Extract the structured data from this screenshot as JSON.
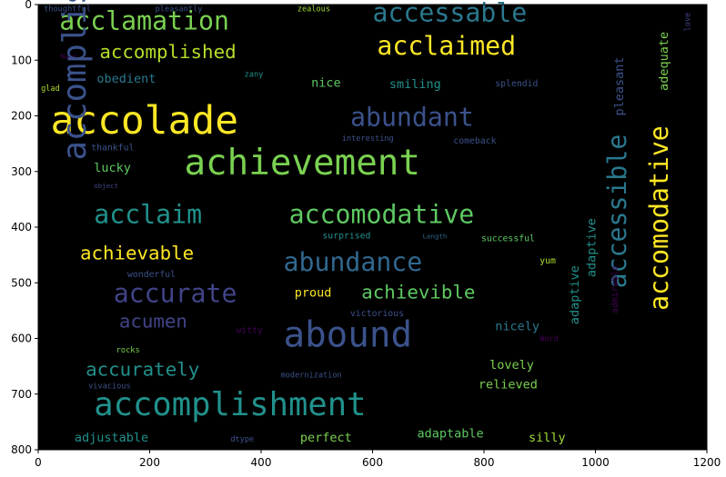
{
  "chart_data": {
    "type": "wordcloud",
    "title": "",
    "xlabel": "",
    "ylabel": "",
    "xlim": [
      0,
      1200
    ],
    "ylim": [
      800,
      0
    ],
    "x_ticks": [
      0,
      200,
      400,
      600,
      800,
      1000,
      1200
    ],
    "y_ticks": [
      0,
      100,
      200,
      300,
      400,
      500,
      600,
      700,
      800
    ],
    "background": "#000000",
    "grid": false,
    "words": [
      {
        "text": "thoughtful",
        "x": 10,
        "y": 12,
        "size": 14,
        "color": "#3b528b",
        "rotate": 0
      },
      {
        "text": "pleasantly",
        "x": 210,
        "y": 12,
        "size": 14,
        "color": "#3b528b",
        "rotate": 0
      },
      {
        "text": "zealous",
        "x": 465,
        "y": 12,
        "size": 14,
        "color": "#a0da39",
        "rotate": 0
      },
      {
        "text": "acclamation",
        "x": 38,
        "y": 45,
        "size": 46,
        "color": "#7ad151",
        "rotate": 0
      },
      {
        "text": "accessable",
        "x": 600,
        "y": 30,
        "size": 46,
        "color": "#2a788e",
        "rotate": 0
      },
      {
        "text": "love",
        "x": 1170,
        "y": 48,
        "size": 14,
        "color": "#414487",
        "rotate": 90
      },
      {
        "text": "adequate",
        "x": 1130,
        "y": 155,
        "size": 22,
        "color": "#7ad151",
        "rotate": 270
      },
      {
        "text": "Name",
        "x": 40,
        "y": 97,
        "size": 12,
        "color": "#440154",
        "rotate": 0
      },
      {
        "text": "accomplished",
        "x": 110,
        "y": 96,
        "size": 34,
        "color": "#b5de2b",
        "rotate": 0
      },
      {
        "text": "acclaimed",
        "x": 608,
        "y": 90,
        "size": 46,
        "color": "#fde725",
        "rotate": 0
      },
      {
        "text": "zany",
        "x": 370,
        "y": 130,
        "size": 14,
        "color": "#21918c",
        "rotate": 0
      },
      {
        "text": "obedient",
        "x": 105,
        "y": 140,
        "size": 22,
        "color": "#2a788e",
        "rotate": 0
      },
      {
        "text": "nice",
        "x": 490,
        "y": 148,
        "size": 22,
        "color": "#5ec962",
        "rotate": 0
      },
      {
        "text": "smiling",
        "x": 630,
        "y": 150,
        "size": 22,
        "color": "#21918c",
        "rotate": 0
      },
      {
        "text": "splendid",
        "x": 820,
        "y": 147,
        "size": 16,
        "color": "#3b528b",
        "rotate": 0
      },
      {
        "text": "glad",
        "x": 5,
        "y": 155,
        "size": 14,
        "color": "#addc30",
        "rotate": 0
      },
      {
        "text": "pleasant",
        "x": 1050,
        "y": 200,
        "size": 22,
        "color": "#3b528b",
        "rotate": 270
      },
      {
        "text": "accomodative",
        "x": 1130,
        "y": 550,
        "size": 46,
        "color": "#fde725",
        "rotate": 270
      },
      {
        "text": "accolade",
        "x": 22,
        "y": 232,
        "size": 70,
        "color": "#fde725",
        "rotate": 0
      },
      {
        "text": "abundant",
        "x": 560,
        "y": 218,
        "size": 46,
        "color": "#3b528b",
        "rotate": 0
      },
      {
        "text": "accessible",
        "x": 1055,
        "y": 510,
        "size": 46,
        "color": "#2a788e",
        "rotate": 270
      },
      {
        "text": "interesting",
        "x": 545,
        "y": 245,
        "size": 14,
        "color": "#3b528b",
        "rotate": 0
      },
      {
        "text": "comeback",
        "x": 745,
        "y": 250,
        "size": 16,
        "color": "#3b528b",
        "rotate": 0
      },
      {
        "text": "thankful",
        "x": 95,
        "y": 262,
        "size": 16,
        "color": "#3b528b",
        "rotate": 0
      },
      {
        "text": "achievement",
        "x": 262,
        "y": 305,
        "size": 64,
        "color": "#7ad151",
        "rotate": 0
      },
      {
        "text": "accomplish",
        "x": 85,
        "y": 280,
        "size": 58,
        "color": "#3b528b",
        "rotate": 270
      },
      {
        "text": "lucky",
        "x": 100,
        "y": 300,
        "size": 22,
        "color": "#5ec962",
        "rotate": 0
      },
      {
        "text": "object",
        "x": 100,
        "y": 330,
        "size": 12,
        "color": "#414487",
        "rotate": 0
      },
      {
        "text": "acclaim",
        "x": 100,
        "y": 393,
        "size": 46,
        "color": "#21918c",
        "rotate": 0
      },
      {
        "text": "accomodative",
        "x": 450,
        "y": 393,
        "size": 46,
        "color": "#5ec962",
        "rotate": 0
      },
      {
        "text": "surprised",
        "x": 510,
        "y": 420,
        "size": 16,
        "color": "#21918c",
        "rotate": 0
      },
      {
        "text": "Length",
        "x": 690,
        "y": 420,
        "size": 12,
        "color": "#31688e",
        "rotate": 0
      },
      {
        "text": "successful",
        "x": 795,
        "y": 425,
        "size": 16,
        "color": "#5ec962",
        "rotate": 0
      },
      {
        "text": "achievable",
        "x": 75,
        "y": 458,
        "size": 34,
        "color": "#fde725",
        "rotate": 0
      },
      {
        "text": "abundance",
        "x": 440,
        "y": 478,
        "size": 46,
        "color": "#31688e",
        "rotate": 0
      },
      {
        "text": "yum",
        "x": 900,
        "y": 465,
        "size": 16,
        "color": "#addc30",
        "rotate": 0
      },
      {
        "text": "adaptive",
        "x": 1000,
        "y": 490,
        "size": 22,
        "color": "#21918c",
        "rotate": 270
      },
      {
        "text": "wonderful",
        "x": 160,
        "y": 490,
        "size": 16,
        "color": "#3b528b",
        "rotate": 0
      },
      {
        "text": "accurate",
        "x": 135,
        "y": 535,
        "size": 46,
        "color": "#414487",
        "rotate": 0
      },
      {
        "text": "proud",
        "x": 460,
        "y": 525,
        "size": 22,
        "color": "#fde725",
        "rotate": 0
      },
      {
        "text": "achievible",
        "x": 580,
        "y": 528,
        "size": 34,
        "color": "#5ec962",
        "rotate": 0
      },
      {
        "text": "acumen",
        "x": 145,
        "y": 580,
        "size": 34,
        "color": "#414487",
        "rotate": 0
      },
      {
        "text": "victorious",
        "x": 560,
        "y": 560,
        "size": 16,
        "color": "#3b528b",
        "rotate": 0
      },
      {
        "text": "nicely",
        "x": 820,
        "y": 585,
        "size": 22,
        "color": "#2a788e",
        "rotate": 0
      },
      {
        "text": "witty",
        "x": 355,
        "y": 590,
        "size": 16,
        "color": "#440154",
        "rotate": 0
      },
      {
        "text": "abound",
        "x": 440,
        "y": 615,
        "size": 64,
        "color": "#3b528b",
        "rotate": 0
      },
      {
        "text": "admirable",
        "x": 1040,
        "y": 555,
        "size": 16,
        "color": "#440154",
        "rotate": 270
      },
      {
        "text": "Word",
        "x": 900,
        "y": 605,
        "size": 14,
        "color": "#440154",
        "rotate": 0
      },
      {
        "text": "rocks",
        "x": 140,
        "y": 625,
        "size": 14,
        "color": "#7ad151",
        "rotate": 0
      },
      {
        "text": "accurately",
        "x": 85,
        "y": 667,
        "size": 34,
        "color": "#21918c",
        "rotate": 0
      },
      {
        "text": "lovely",
        "x": 810,
        "y": 655,
        "size": 22,
        "color": "#7ad151",
        "rotate": 0
      },
      {
        "text": "adaptive",
        "x": 970,
        "y": 575,
        "size": 22,
        "color": "#21918c",
        "rotate": 270
      },
      {
        "text": "modernization",
        "x": 435,
        "y": 670,
        "size": 14,
        "color": "#3b528b",
        "rotate": 0
      },
      {
        "text": "relieved",
        "x": 790,
        "y": 690,
        "size": 22,
        "color": "#7ad151",
        "rotate": 0
      },
      {
        "text": "vivacious",
        "x": 90,
        "y": 690,
        "size": 14,
        "color": "#3b528b",
        "rotate": 0
      },
      {
        "text": "accomplishment",
        "x": 100,
        "y": 738,
        "size": 58,
        "color": "#21918c",
        "rotate": 0
      },
      {
        "text": "adjustable",
        "x": 65,
        "y": 785,
        "size": 22,
        "color": "#21918c",
        "rotate": 0
      },
      {
        "text": "dtype",
        "x": 345,
        "y": 785,
        "size": 14,
        "color": "#3b528b",
        "rotate": 0
      },
      {
        "text": "perfect",
        "x": 470,
        "y": 785,
        "size": 22,
        "color": "#7ad151",
        "rotate": 0
      },
      {
        "text": "adaptable",
        "x": 680,
        "y": 778,
        "size": 22,
        "color": "#5ec962",
        "rotate": 0
      },
      {
        "text": "silly",
        "x": 880,
        "y": 785,
        "size": 22,
        "color": "#a0da39",
        "rotate": 0
      }
    ]
  }
}
